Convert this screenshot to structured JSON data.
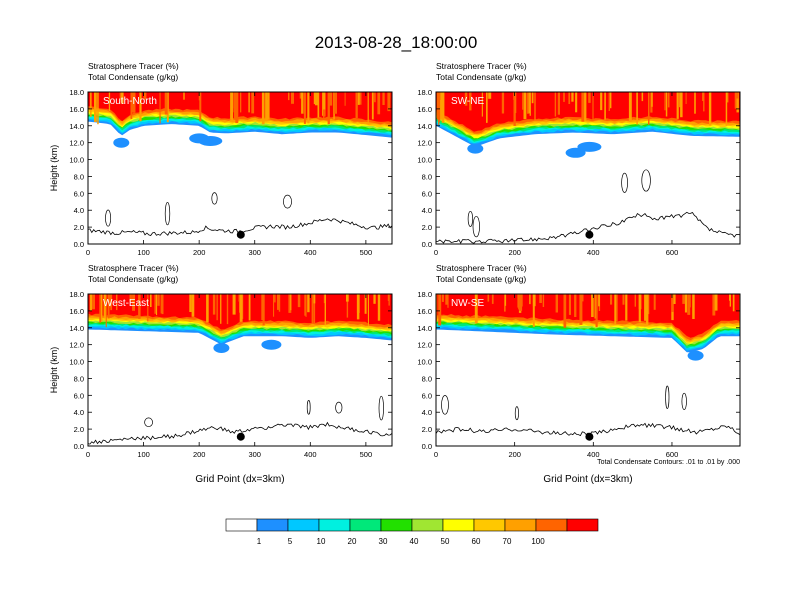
{
  "title": "2013-08-28_18:00:00",
  "colors": [
    "#ffffff",
    "#1e90ff",
    "#00c8ff",
    "#00f0e0",
    "#00e87a",
    "#22e000",
    "#a0e632",
    "#ffff00",
    "#ffc800",
    "#ffa000",
    "#ff6400",
    "#ff0000"
  ],
  "colorbar": {
    "labels": [
      "1",
      "5",
      "10",
      "20",
      "30",
      "40",
      "50",
      "60",
      "70",
      "100"
    ]
  },
  "y_tick_labels": [
    "0.0",
    "2.0",
    "4.0",
    "6.0",
    "8.0",
    "10.0",
    "12.0",
    "14.0",
    "16.0",
    "18.0"
  ],
  "footnote": "Total Condensate Contours: .01 to .01 by .000",
  "chart_data": [
    {
      "type": "contour",
      "panel": "top-left",
      "title": "South-North",
      "header": [
        "Stratosphere Tracer   (%)",
        "Total Condensate   (g/kg)"
      ],
      "ylabel": "Height (km)",
      "xlabel": "",
      "xlim": [
        0,
        547
      ],
      "ylim": [
        0,
        18
      ],
      "xticks": [
        0,
        100,
        200,
        300,
        400,
        500
      ],
      "yticks": [
        0,
        2,
        4,
        6,
        8,
        10,
        12,
        14,
        16,
        18
      ],
      "tracer_base_km": [
        [
          0,
          14.5
        ],
        [
          40,
          14.2
        ],
        [
          60,
          12.8
        ],
        [
          75,
          13.5
        ],
        [
          100,
          14.0
        ],
        [
          150,
          14.2
        ],
        [
          200,
          14.0
        ],
        [
          220,
          13.2
        ],
        [
          250,
          13.1
        ],
        [
          300,
          13.3
        ],
        [
          350,
          13.0
        ],
        [
          400,
          13.2
        ],
        [
          450,
          13.2
        ],
        [
          500,
          12.9
        ],
        [
          547,
          12.6
        ]
      ],
      "blue_patches": [
        [
          60,
          12.0
        ],
        [
          200,
          12.5
        ],
        [
          220,
          12.2
        ]
      ],
      "terrain_km": [
        [
          0,
          1.6
        ],
        [
          20,
          1.5
        ],
        [
          50,
          1.3
        ],
        [
          80,
          1.4
        ],
        [
          110,
          1.2
        ],
        [
          150,
          1.3
        ],
        [
          190,
          1.4
        ],
        [
          210,
          1.9
        ],
        [
          240,
          1.6
        ],
        [
          270,
          1.5
        ],
        [
          300,
          1.9
        ],
        [
          330,
          2.1
        ],
        [
          360,
          2.0
        ],
        [
          400,
          2.5
        ],
        [
          430,
          3.0
        ],
        [
          450,
          2.8
        ],
        [
          480,
          2.3
        ],
        [
          510,
          1.9
        ],
        [
          547,
          2.2
        ]
      ],
      "marker": [
        275,
        1.1
      ]
    },
    {
      "type": "contour",
      "panel": "top-right",
      "title": "SW-NE",
      "header": [
        "Stratosphere Tracer   (%)",
        "Total Condensate   (g/kg)"
      ],
      "ylabel": "",
      "xlabel": "",
      "xlim": [
        0,
        773
      ],
      "ylim": [
        0,
        18
      ],
      "xticks": [
        0,
        200,
        400,
        600
      ],
      "yticks": [
        0,
        2,
        4,
        6,
        8,
        10,
        12,
        14,
        16,
        18
      ],
      "tracer_base_km": [
        [
          0,
          14.0
        ],
        [
          60,
          12.5
        ],
        [
          100,
          11.5
        ],
        [
          160,
          12.5
        ],
        [
          250,
          13.0
        ],
        [
          350,
          13.2
        ],
        [
          450,
          13.0
        ],
        [
          550,
          13.3
        ],
        [
          650,
          12.8
        ],
        [
          773,
          12.7
        ]
      ],
      "blue_patches": [
        [
          100,
          11.3
        ],
        [
          355,
          10.8
        ],
        [
          390,
          11.5
        ]
      ],
      "terrain_km": [
        [
          0,
          0.3
        ],
        [
          100,
          0.3
        ],
        [
          200,
          0.4
        ],
        [
          280,
          0.7
        ],
        [
          330,
          1.0
        ],
        [
          380,
          1.6
        ],
        [
          420,
          2.0
        ],
        [
          470,
          2.6
        ],
        [
          520,
          3.5
        ],
        [
          560,
          3.0
        ],
        [
          610,
          3.3
        ],
        [
          650,
          3.6
        ],
        [
          690,
          1.8
        ],
        [
          730,
          1.2
        ],
        [
          773,
          1.0
        ]
      ],
      "marker": [
        390,
        1.1
      ]
    },
    {
      "type": "contour",
      "panel": "bottom-left",
      "title": "West-East",
      "header": [
        "Stratosphere Tracer   (%)",
        "Total Condensate   (g/kg)"
      ],
      "ylabel": "Height (km)",
      "xlabel": "Grid Point (dx=3km)",
      "xlim": [
        0,
        547
      ],
      "ylim": [
        0,
        18
      ],
      "xticks": [
        0,
        100,
        200,
        300,
        400,
        500
      ],
      "yticks": [
        0,
        2,
        4,
        6,
        8,
        10,
        12,
        14,
        16,
        18
      ],
      "tracer_base_km": [
        [
          0,
          13.8
        ],
        [
          100,
          13.6
        ],
        [
          200,
          13.4
        ],
        [
          240,
          12.0
        ],
        [
          280,
          13.0
        ],
        [
          350,
          13.0
        ],
        [
          400,
          12.8
        ],
        [
          450,
          13.0
        ],
        [
          500,
          12.8
        ],
        [
          547,
          12.5
        ]
      ],
      "blue_patches": [
        [
          240,
          11.6
        ],
        [
          330,
          12.0
        ]
      ],
      "terrain_km": [
        [
          0,
          0.4
        ],
        [
          40,
          0.6
        ],
        [
          80,
          0.9
        ],
        [
          120,
          1.0
        ],
        [
          160,
          1.2
        ],
        [
          200,
          1.8
        ],
        [
          230,
          2.2
        ],
        [
          260,
          1.6
        ],
        [
          300,
          2.0
        ],
        [
          350,
          2.5
        ],
        [
          400,
          2.2
        ],
        [
          430,
          2.6
        ],
        [
          470,
          2.0
        ],
        [
          510,
          1.6
        ],
        [
          547,
          1.3
        ]
      ],
      "marker": [
        275,
        1.1
      ]
    },
    {
      "type": "contour",
      "panel": "bottom-right",
      "title": "NW-SE",
      "header": [
        "Stratosphere Tracer   (%)",
        "Total Condensate   (g/kg)"
      ],
      "ylabel": "",
      "xlabel": "Grid Point (dx=3km)",
      "xlim": [
        0,
        773
      ],
      "ylim": [
        0,
        18
      ],
      "xticks": [
        0,
        200,
        400,
        600
      ],
      "yticks": [
        0,
        2,
        4,
        6,
        8,
        10,
        12,
        14,
        16,
        18
      ],
      "tracer_base_km": [
        [
          0,
          13.8
        ],
        [
          150,
          13.5
        ],
        [
          300,
          13.2
        ],
        [
          450,
          13.0
        ],
        [
          600,
          12.8
        ],
        [
          640,
          11.0
        ],
        [
          680,
          11.5
        ],
        [
          720,
          13.0
        ],
        [
          773,
          13.0
        ]
      ],
      "blue_patches": [
        [
          660,
          10.7
        ]
      ],
      "terrain_km": [
        [
          0,
          1.7
        ],
        [
          60,
          2.0
        ],
        [
          120,
          1.7
        ],
        [
          200,
          2.0
        ],
        [
          280,
          1.6
        ],
        [
          350,
          1.4
        ],
        [
          410,
          1.5
        ],
        [
          460,
          2.1
        ],
        [
          520,
          2.5
        ],
        [
          580,
          2.3
        ],
        [
          620,
          2.0
        ],
        [
          660,
          1.6
        ],
        [
          700,
          2.0
        ],
        [
          740,
          2.4
        ],
        [
          773,
          1.5
        ]
      ],
      "marker": [
        390,
        1.1
      ]
    }
  ]
}
